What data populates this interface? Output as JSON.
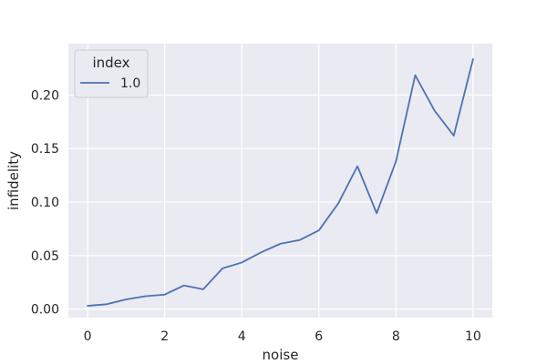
{
  "chart_data": {
    "type": "line",
    "title": "",
    "xlabel": "noise",
    "ylabel": "infidelity",
    "xlim": [
      -0.5,
      10.5
    ],
    "ylim": [
      -0.008,
      0.248
    ],
    "x_ticks": [
      0,
      2,
      4,
      6,
      8,
      10
    ],
    "x_tick_labels": [
      "0",
      "2",
      "4",
      "6",
      "8",
      "10"
    ],
    "y_ticks": [
      0.0,
      0.05,
      0.1,
      0.15,
      0.2
    ],
    "y_tick_labels": [
      "0.00",
      "0.05",
      "0.10",
      "0.15",
      "0.20"
    ],
    "grid": true,
    "legend": {
      "title": "index",
      "placement": "top-left",
      "entries": [
        "1.0"
      ]
    },
    "x": [
      0,
      0.5,
      1,
      1.5,
      2,
      2.5,
      3,
      3.5,
      4,
      4.5,
      5,
      5.5,
      6,
      6.5,
      7,
      7.5,
      8,
      8.5,
      9,
      9.5,
      10
    ],
    "series": [
      {
        "name": "1.0",
        "color": "#4c72b0",
        "values": [
          0.003,
          0.0045,
          0.009,
          0.012,
          0.0135,
          0.022,
          0.0185,
          0.038,
          0.0435,
          0.053,
          0.061,
          0.0645,
          0.0735,
          0.0985,
          0.1335,
          0.0895,
          0.138,
          0.2185,
          0.1855,
          0.162,
          0.2335
        ]
      }
    ]
  }
}
